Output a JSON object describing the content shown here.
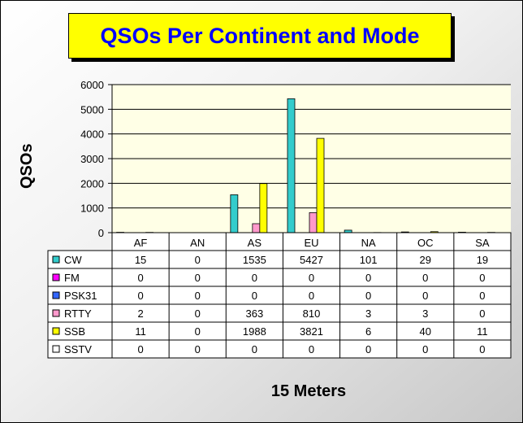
{
  "title": "QSOs Per Continent and Mode",
  "chart_data": {
    "type": "bar",
    "title": "QSOs Per Continent and Mode",
    "xlabel": "15 Meters",
    "ylabel": "QSOs",
    "ylim": [
      0,
      6000
    ],
    "yticks": [
      "0",
      "1000",
      "2000",
      "3000",
      "4000",
      "5000",
      "6000"
    ],
    "categories": [
      "AF",
      "AN",
      "AS",
      "EU",
      "NA",
      "OC",
      "SA"
    ],
    "grid": true,
    "legend": "data-table",
    "series": [
      {
        "name": "CW",
        "color": "#33cccc",
        "values": [
          15,
          0,
          1535,
          5427,
          101,
          29,
          19
        ]
      },
      {
        "name": "FM",
        "color": "#ff00ff",
        "values": [
          0,
          0,
          0,
          0,
          0,
          0,
          0
        ]
      },
      {
        "name": "PSK31",
        "color": "#3366ff",
        "values": [
          0,
          0,
          0,
          0,
          0,
          0,
          0
        ]
      },
      {
        "name": "RTTY",
        "color": "#ff99cc",
        "values": [
          2,
          0,
          363,
          810,
          3,
          3,
          0
        ]
      },
      {
        "name": "SSB",
        "color": "#ffff00",
        "values": [
          11,
          0,
          1988,
          3821,
          6,
          40,
          11
        ]
      },
      {
        "name": "SSTV",
        "color": "#ffffff",
        "values": [
          0,
          0,
          0,
          0,
          0,
          0,
          0
        ]
      }
    ]
  }
}
